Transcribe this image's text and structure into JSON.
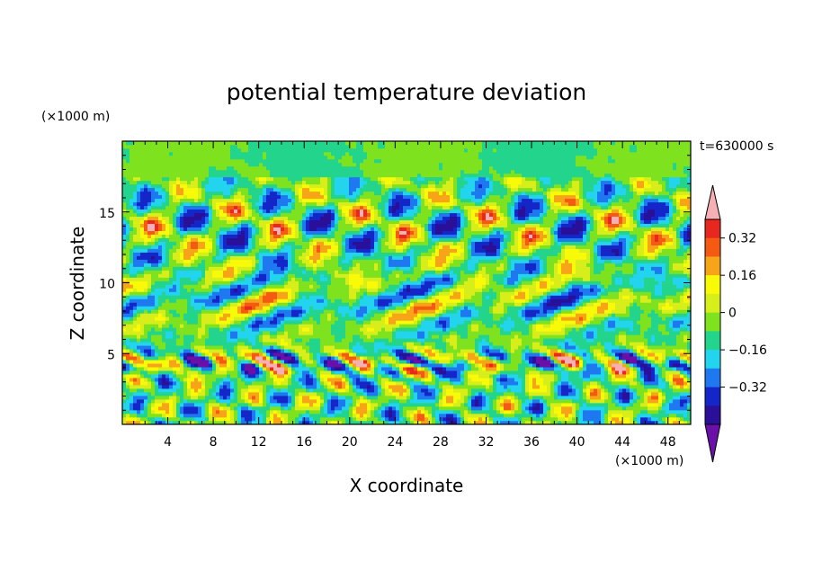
{
  "chart_data": {
    "type": "heatmap",
    "title": "potential temperature deviation",
    "xlabel": "X coordinate",
    "ylabel": "Z coordinate",
    "x_unit": "(×1000 m)",
    "y_unit": "(×1000 m)",
    "time_label": "t=630000 s",
    "xlim": [
      0,
      50
    ],
    "ylim": [
      0,
      20
    ],
    "x_ticks": [
      4,
      8,
      12,
      16,
      20,
      24,
      28,
      32,
      36,
      40,
      44,
      48
    ],
    "y_ticks": [
      5,
      10,
      15
    ],
    "colorbar": {
      "levels": [
        -0.44,
        -0.4,
        -0.32,
        -0.24,
        -0.16,
        -0.08,
        0,
        0.08,
        0.16,
        0.24,
        0.32,
        0.4,
        0.44
      ],
      "labeled_levels": [
        0.32,
        0.16,
        0,
        -0.16,
        -0.32
      ],
      "labels": [
        "0.32",
        "0.16",
        "0",
        "−0.16",
        "−0.32"
      ],
      "colors": [
        "#6a0fa8",
        "#2a1099",
        "#1426c8",
        "#1e78f0",
        "#22d4ee",
        "#22d48c",
        "#7ee21e",
        "#d8ee1a",
        "#f8fa08",
        "#f8a418",
        "#f45a12",
        "#e8281e",
        "#f4b0b4"
      ],
      "extend": "both"
    }
  }
}
